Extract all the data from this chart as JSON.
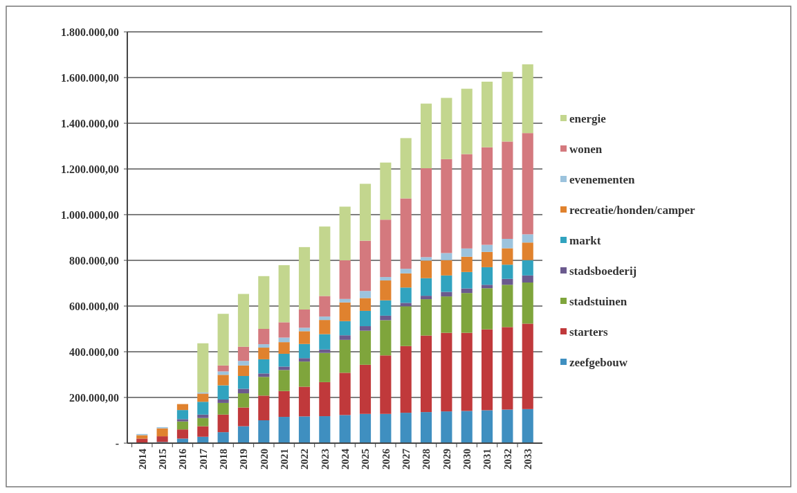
{
  "chart_data": {
    "type": "bar",
    "stacked": true,
    "categories": [
      "2014",
      "2015",
      "2016",
      "2017",
      "2018",
      "2019",
      "2020",
      "2021",
      "2022",
      "2023",
      "2024",
      "2025",
      "2026",
      "2027",
      "2028",
      "2029",
      "2030",
      "2031",
      "2032",
      "2033"
    ],
    "series": [
      {
        "name": "zeefgebouw",
        "color": "#3f8fc0",
        "values": [
          0,
          5000,
          20000,
          28000,
          48000,
          74000,
          100000,
          115000,
          117000,
          118000,
          123000,
          128000,
          128000,
          133000,
          136000,
          139000,
          141000,
          144000,
          147000,
          149000
        ]
      },
      {
        "name": "starters",
        "color": "#c0393b",
        "values": [
          20000,
          25000,
          40000,
          46000,
          77000,
          82000,
          108000,
          113000,
          130000,
          149000,
          185000,
          215000,
          256000,
          292000,
          335000,
          344000,
          342000,
          354000,
          361000,
          374000
        ]
      },
      {
        "name": "stadstuinen",
        "color": "#7fa53c",
        "values": [
          0,
          0,
          35000,
          36000,
          51000,
          62000,
          82000,
          92000,
          110000,
          128000,
          144000,
          149000,
          154000,
          174000,
          159000,
          159000,
          174000,
          180000,
          185000,
          180000
        ]
      },
      {
        "name": "stadsboederij",
        "color": "#6b5a8e",
        "values": [
          0,
          0,
          10000,
          15000,
          15000,
          20000,
          15000,
          15000,
          15000,
          15000,
          20000,
          20000,
          20000,
          15000,
          15000,
          20000,
          20000,
          15000,
          26000,
          31000
        ]
      },
      {
        "name": "markt",
        "color": "#31a3bf",
        "values": [
          0,
          0,
          40000,
          56000,
          62000,
          56000,
          62000,
          56000,
          62000,
          67000,
          62000,
          67000,
          67000,
          67000,
          77000,
          72000,
          72000,
          77000,
          62000,
          67000
        ]
      },
      {
        "name": "recreatie/honden/camper",
        "color": "#e0822e",
        "values": [
          15000,
          35000,
          26000,
          36000,
          46000,
          46000,
          51000,
          51000,
          56000,
          62000,
          82000,
          56000,
          87000,
          62000,
          77000,
          67000,
          67000,
          67000,
          72000,
          77000
        ]
      },
      {
        "name": "evenementen",
        "color": "#9cc3dd",
        "values": [
          5000,
          5000,
          0,
          5000,
          15000,
          20000,
          15000,
          20000,
          15000,
          15000,
          15000,
          31000,
          15000,
          20000,
          15000,
          31000,
          36000,
          31000,
          41000,
          36000
        ]
      },
      {
        "name": "wonen",
        "color": "#d4797e",
        "values": [
          0,
          0,
          0,
          0,
          26000,
          62000,
          67000,
          67000,
          80000,
          90000,
          169000,
          220000,
          251000,
          308000,
          389000,
          411000,
          413000,
          427000,
          426000,
          443000
        ]
      },
      {
        "name": "energie",
        "color": "#c3d68e",
        "values": [
          0,
          0,
          0,
          215000,
          226000,
          231000,
          231000,
          250000,
          273000,
          304000,
          235000,
          249000,
          250000,
          264000,
          283000,
          268000,
          286000,
          287000,
          305000,
          301000
        ]
      }
    ],
    "ylim": [
      0,
      1800000
    ],
    "yticks": [
      {
        "value": 0,
        "label": "-"
      },
      {
        "value": 200000,
        "label": "200.000,00"
      },
      {
        "value": 400000,
        "label": "400.000,00"
      },
      {
        "value": 600000,
        "label": "600.000,00"
      },
      {
        "value": 800000,
        "label": "800.000,00"
      },
      {
        "value": 1000000,
        "label": "1.000.000,00"
      },
      {
        "value": 1200000,
        "label": "1.200.000,00"
      },
      {
        "value": 1400000,
        "label": "1.400.000,00"
      },
      {
        "value": 1600000,
        "label": "1.600.000,00"
      },
      {
        "value": 1800000,
        "label": "1.800.000,00"
      }
    ],
    "grid": "y",
    "legend": "right"
  }
}
